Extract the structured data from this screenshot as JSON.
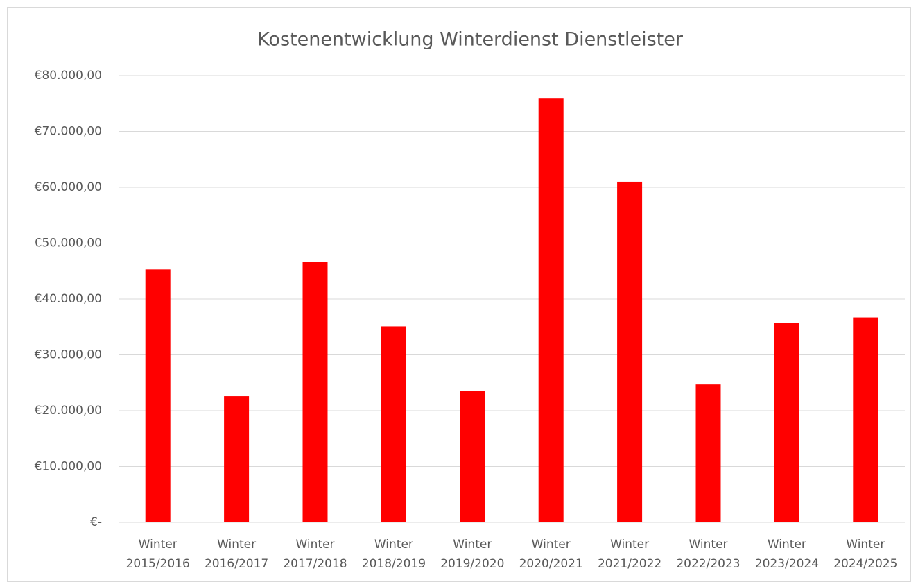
{
  "chart_data": {
    "type": "bar",
    "title": "Kostenentwicklung Winterdienst Dienstleister",
    "categories": [
      "Winter 2015/2016",
      "Winter 2016/2017",
      "Winter 2017/2018",
      "Winter 2018/2019",
      "Winter 2019/2020",
      "Winter 2020/2021",
      "Winter 2021/2022",
      "Winter 2022/2023",
      "Winter 2023/2024",
      "Winter 2024/2025"
    ],
    "values": [
      45300,
      22600,
      46600,
      35100,
      23600,
      76000,
      61000,
      24700,
      35700,
      36700
    ],
    "color": "#ff0000",
    "ylim": [
      0,
      80000
    ],
    "yticks": [
      {
        "value": 0,
        "label": "€-"
      },
      {
        "value": 10000,
        "label": "€10.000,00"
      },
      {
        "value": 20000,
        "label": "€20.000,00"
      },
      {
        "value": 30000,
        "label": "€30.000,00"
      },
      {
        "value": 40000,
        "label": "€40.000,00"
      },
      {
        "value": 50000,
        "label": "€50.000,00"
      },
      {
        "value": 60000,
        "label": "€60.000,00"
      },
      {
        "value": 70000,
        "label": "€70.000,00"
      },
      {
        "value": 80000,
        "label": "€80.000,00"
      }
    ],
    "grid": true
  }
}
